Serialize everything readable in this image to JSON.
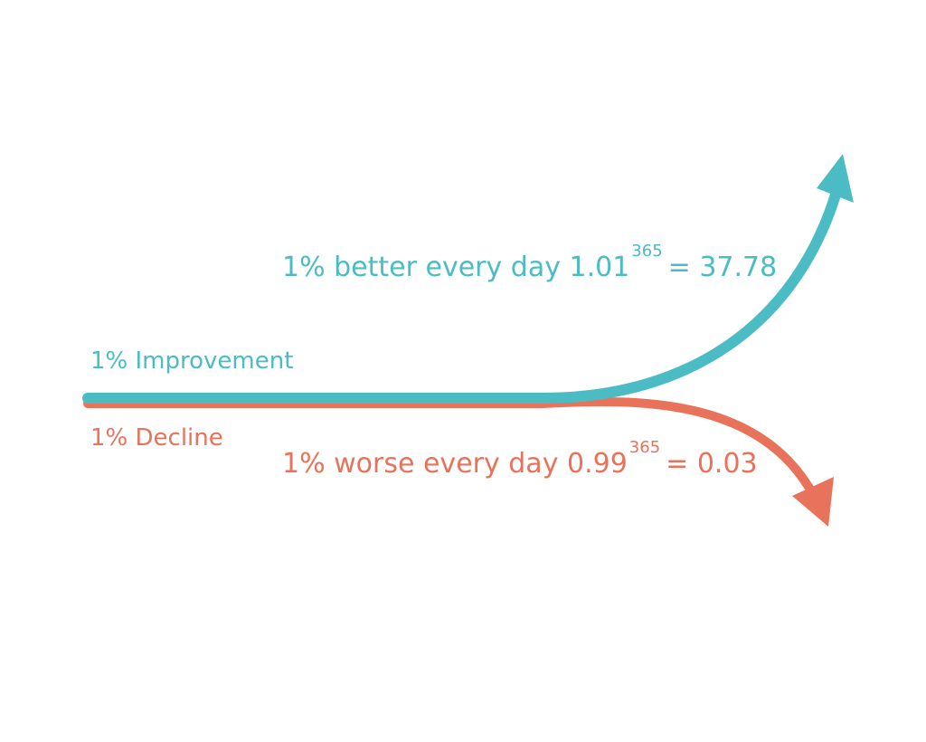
{
  "improvement": {
    "label": "1% Improvement",
    "formula": {
      "text": "1% better every day 1.01",
      "exponent": "365",
      "result": "= 37.78"
    }
  },
  "decline": {
    "label": "1% Decline",
    "formula": {
      "text": "1% worse every day 0.99",
      "exponent": "365",
      "result": "= 0.03"
    }
  }
}
